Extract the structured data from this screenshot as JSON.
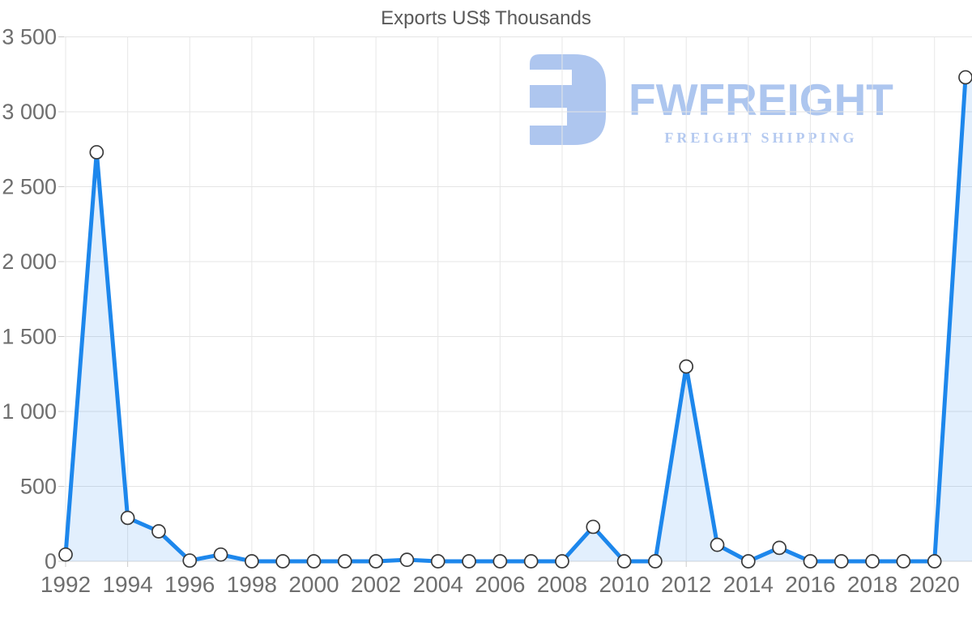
{
  "title": "Exports US$ Thousands",
  "watermark": {
    "brand": "FWFREIGHT",
    "tagline": "FREIGHT SHIPPING",
    "logo_color": "#aac4ef"
  },
  "colors": {
    "line": "#1d87ec",
    "area_fill": "rgba(29,135,236,0.13)",
    "gridline": "#e4e4e4",
    "axis_line": "#d9d9d9",
    "tick": "#cccccc",
    "axis_label": "#6e6e6e",
    "title_text": "#595959",
    "marker_fill": "#ffffff",
    "marker_stroke": "#3a3a3a"
  },
  "chart_data": {
    "type": "area",
    "title": "Exports US$ Thousands",
    "xlabel": "",
    "ylabel": "",
    "x": [
      1992,
      1993,
      1994,
      1995,
      1996,
      1997,
      1998,
      1999,
      2000,
      2001,
      2002,
      2003,
      2004,
      2005,
      2006,
      2007,
      2008,
      2009,
      2010,
      2011,
      2012,
      2013,
      2014,
      2015,
      2016,
      2017,
      2018,
      2019,
      2020,
      2021
    ],
    "values": [
      45,
      2730,
      290,
      200,
      5,
      45,
      0,
      0,
      0,
      0,
      0,
      10,
      0,
      0,
      0,
      0,
      0,
      230,
      0,
      0,
      1300,
      110,
      0,
      90,
      0,
      0,
      0,
      0,
      0,
      3230
    ],
    "ylim": [
      0,
      3500
    ],
    "y_ticks": [
      0,
      500,
      1000,
      1500,
      2000,
      2500,
      3000,
      3500
    ],
    "y_tick_labels": [
      "0",
      "500",
      "1 000",
      "1 500",
      "2 000",
      "2 500",
      "3 000",
      "3 500"
    ],
    "x_tick_labels": [
      "1992",
      "1994",
      "1996",
      "1998",
      "2000",
      "2002",
      "2004",
      "2006",
      "2008",
      "2010",
      "2012",
      "2014",
      "2016",
      "2018",
      "2020"
    ],
    "grid": true,
    "legend": "none",
    "line_color": "#1d87ec",
    "fill_color": "rgba(29,135,236,0.13)",
    "marker": "white-circle-dark-outline"
  }
}
